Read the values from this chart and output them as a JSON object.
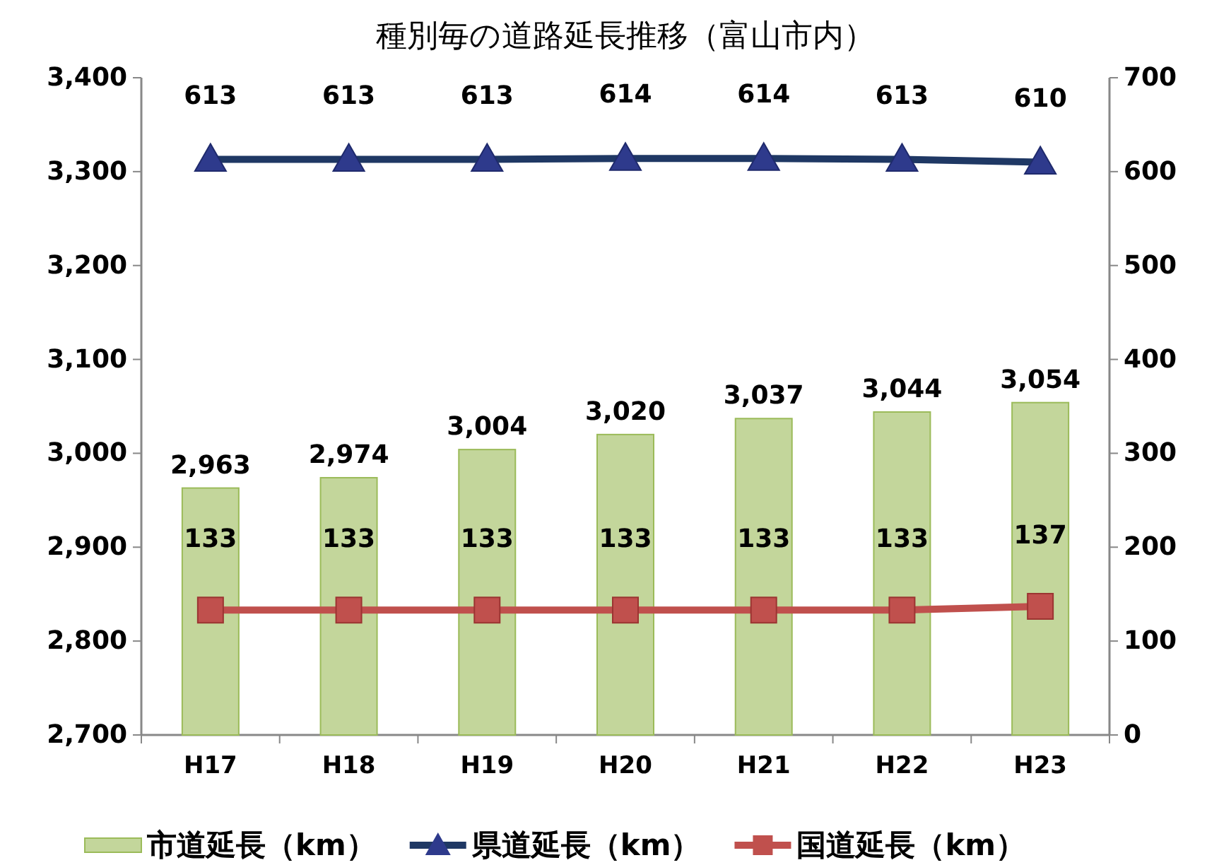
{
  "chart_data": {
    "type": "bar",
    "title": "種別毎の道路延長推移（富山市内）",
    "categories": [
      "H17",
      "H18",
      "H19",
      "H20",
      "H21",
      "H22",
      "H23"
    ],
    "series": [
      {
        "name": "市道延長（km）",
        "color": "#c3d69b",
        "values": [
          2963,
          2974,
          3004,
          3020,
          3037,
          3044,
          3054
        ],
        "value_labels": [
          "2,963",
          "2,974",
          "3,004",
          "3,020",
          "3,037",
          "3,044",
          "3,054"
        ]
      },
      {
        "name": "県道延長（km）",
        "type": "line",
        "axis": "y2",
        "marker": "triangle",
        "color": "#1f3864",
        "values": [
          613,
          613,
          613,
          614,
          614,
          613,
          610
        ],
        "value_labels": [
          "613",
          "613",
          "613",
          "614",
          "614",
          "613",
          "610"
        ]
      },
      {
        "name": "国道延長（km）",
        "type": "line",
        "axis": "y2",
        "marker": "square",
        "color": "#c0504d",
        "values": [
          133,
          133,
          133,
          133,
          133,
          133,
          137
        ],
        "value_labels": [
          "133",
          "133",
          "133",
          "133",
          "133",
          "133",
          "137"
        ]
      }
    ],
    "ylim": [
      2700,
      3400
    ],
    "yticks": [
      {
        "value": 2700,
        "label": "2,700"
      },
      {
        "value": 2800,
        "label": "2,800"
      },
      {
        "value": 2900,
        "label": "2,900"
      },
      {
        "value": 3000,
        "label": "3,000"
      },
      {
        "value": 3100,
        "label": "3,100"
      },
      {
        "value": 3200,
        "label": "3,200"
      },
      {
        "value": 3300,
        "label": "3,300"
      },
      {
        "value": 3400,
        "label": "3,400"
      }
    ],
    "y2lim": [
      0,
      700
    ],
    "y2ticks": [
      0,
      100,
      200,
      300,
      400,
      500,
      600,
      700
    ],
    "legend": "bottom"
  }
}
